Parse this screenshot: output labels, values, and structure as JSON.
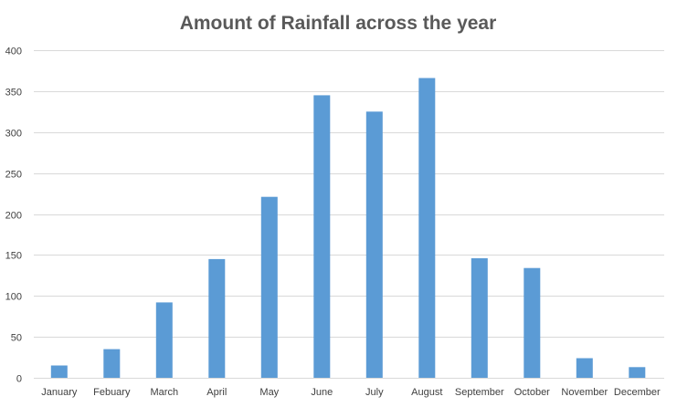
{
  "chart_data": {
    "type": "bar",
    "title": "Amount of Rainfall across the year",
    "xlabel": "",
    "ylabel": "",
    "categories": [
      "January",
      "Febuary",
      "March",
      "April",
      "May",
      "June",
      "July",
      "August",
      "September",
      "October",
      "November",
      "December"
    ],
    "values": [
      15,
      35,
      92,
      145,
      221,
      345,
      325,
      366,
      146,
      134,
      24,
      13
    ],
    "ylim": [
      0,
      400
    ],
    "yticks": [
      "0",
      "50",
      "100",
      "150",
      "200",
      "250",
      "300",
      "350",
      "400"
    ],
    "grid": true,
    "legend": "none",
    "bar_color": "#5b9bd5",
    "gridline_color": "#d9d9d9"
  }
}
